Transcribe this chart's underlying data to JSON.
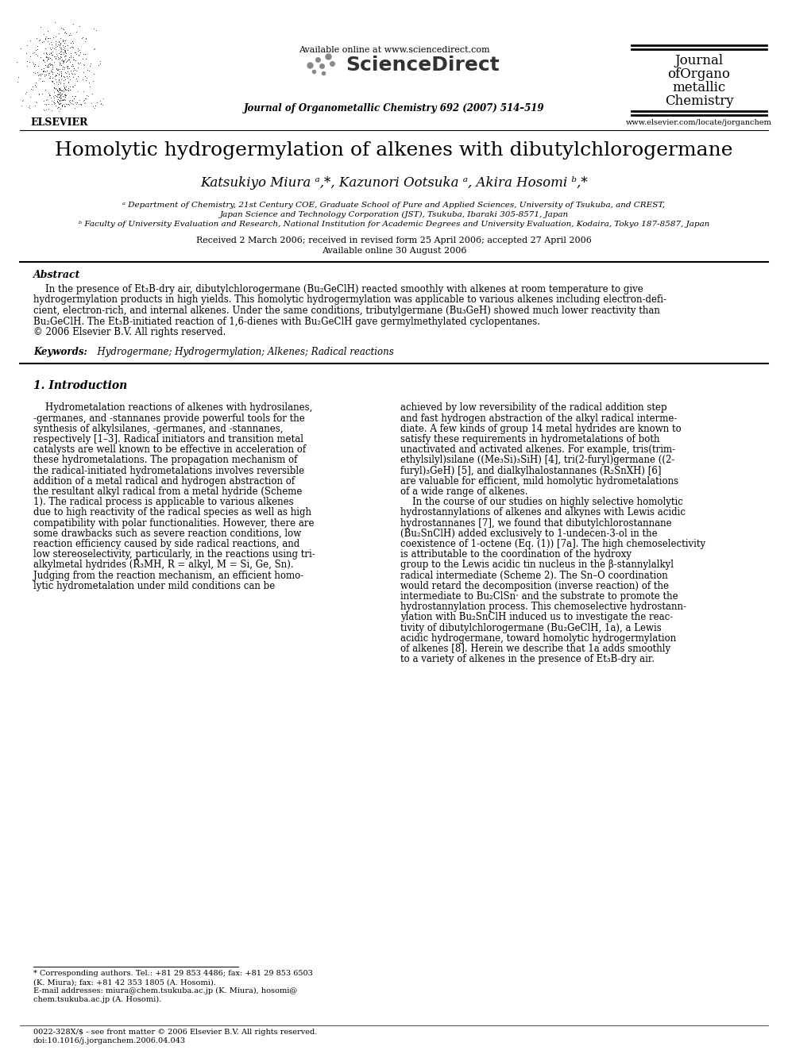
{
  "bg_color": "#ffffff",
  "title": "Homolytic hydrogermylation of alkenes with dibutylchlorogermane",
  "author_text": "Katsukiyo Miura ᵃ,*, Kazunori Ootsuka ᵃ, Akira Hosomi ᵇ,*",
  "affil_a": "ᵃ Department of Chemistry, 21st Century COE, Graduate School of Pure and Applied Sciences, University of Tsukuba, and CREST,",
  "affil_a2": "Japan Science and Technology Corporation (JST), Tsukuba, Ibaraki 305-8571, Japan",
  "affil_b": "ᵇ Faculty of University Evaluation and Research, National Institution for Academic Degrees and University Evaluation, Kodaira, Tokyo 187-8587, Japan",
  "dates": "Received 2 March 2006; received in revised form 25 April 2006; accepted 27 April 2006",
  "online": "Available online 30 August 2006",
  "journal_header": "Journal of Organometallic Chemistry 692 (2007) 514–519",
  "available_online": "Available online at www.sciencedirect.com",
  "journal_name_line1": "Journal",
  "journal_name_line2": "ofOrgano",
  "journal_name_line3": "metallic",
  "journal_name_line4": "Chemistry",
  "url": "www.elsevier.com/locate/jorganchem",
  "elsevier_text": "ELSEVIER",
  "abstract_label": "Abstract",
  "keywords_label": "Keywords:",
  "keywords": "  Hydrogermane; Hydrogermylation; Alkenes; Radical reactions",
  "section1_title": "1. Introduction",
  "footnote1": "* Corresponding authors. Tel.: +81 29 853 4486; fax: +81 29 853 6503",
  "footnote2": "(K. Miura); fax: +81 42 353 1805 (A. Hosomi).",
  "footnote3": "E-mail addresses: miura@chem.tsukuba.ac.jp (K. Miura), hosomi@",
  "footnote4": "chem.tsukuba.ac.jp (A. Hosomi).",
  "footer1": "0022-328X/$ - see front matter © 2006 Elsevier B.V. All rights reserved.",
  "footer2": "doi:10.1016/j.jorganchem.2006.04.043",
  "abstract_lines": [
    "    In the presence of Et₃B-dry air, dibutylchlorogermane (Bu₂GeClH) reacted smoothly with alkenes at room temperature to give",
    "hydrogermylation products in high yields. This homolytic hydrogermylation was applicable to various alkenes including electron-defi-",
    "cient, electron-rich, and internal alkenes. Under the same conditions, tributylgermane (Bu₃GeH) showed much lower reactivity than",
    "Bu₂GeClH. The Et₃B-initiated reaction of 1,6-dienes with Bu₂GeClH gave germylmethylated cyclopentanes.",
    "© 2006 Elsevier B.V. All rights reserved."
  ],
  "intro_left_lines": [
    "    Hydrometalation reactions of alkenes with hydrosilanes,",
    "-germanes, and -stannanes provide powerful tools for the",
    "synthesis of alkylsilanes, -germanes, and -stannanes,",
    "respectively [1–3]. Radical initiators and transition metal",
    "catalysts are well known to be effective in acceleration of",
    "these hydrometalations. The propagation mechanism of",
    "the radical-initiated hydrometalations involves reversible",
    "addition of a metal radical and hydrogen abstraction of",
    "the resultant alkyl radical from a metal hydride (Scheme",
    "1). The radical process is applicable to various alkenes",
    "due to high reactivity of the radical species as well as high",
    "compatibility with polar functionalities. However, there are",
    "some drawbacks such as severe reaction conditions, low",
    "reaction efficiency caused by side radical reactions, and",
    "low stereoselectivity, particularly, in the reactions using tri-",
    "alkylmetal hydrides (R₃MH, R = alkyl, M = Si, Ge, Sn).",
    "Judging from the reaction mechanism, an efficient homo-",
    "lytic hydrometalation under mild conditions can be"
  ],
  "intro_right_lines": [
    "achieved by low reversibility of the radical addition step",
    "and fast hydrogen abstraction of the alkyl radical interme-",
    "diate. A few kinds of group 14 metal hydrides are known to",
    "satisfy these requirements in hydrometalations of both",
    "unactivated and activated alkenes. For example, tris(trim-",
    "ethylsilyl)silane ((Me₃Si)₃SiH) [4], tri(2-furyl)germane ((2-",
    "furyl)₃GeH) [5], and dialkylhalostannanes (R₂SnXH) [6]",
    "are valuable for efficient, mild homolytic hydrometalations",
    "of a wide range of alkenes.",
    "    In the course of our studies on highly selective homolytic",
    "hydrostannylations of alkenes and alkynes with Lewis acidic",
    "hydrostannanes [7], we found that dibutylchlorostannane",
    "(Bu₂SnClH) added exclusively to 1-undecen-3-ol in the",
    "coexistence of 1-octene (Eq. (1)) [7a]. The high chemoselectivity",
    "is attributable to the coordination of the hydroxy",
    "group to the Lewis acidic tin nucleus in the β-stannylalkyl",
    "radical intermediate (Scheme 2). The Sn–O coordination",
    "would retard the decomposition (inverse reaction) of the",
    "intermediate to Bu₂ClSn· and the substrate to promote the",
    "hydrostannylation process. This chemoselective hydrostann-",
    "ylation with Bu₂SnClH induced us to investigate the reac-",
    "tivity of dibutylchlorogermane (Bu₂GeClH, 1a), a Lewis",
    "acidic hydrogermane, toward homolytic hydrogermylation",
    "of alkenes [8]. Herein we describe that 1a adds smoothly",
    "to a variety of alkenes in the presence of Et₃B-dry air."
  ]
}
